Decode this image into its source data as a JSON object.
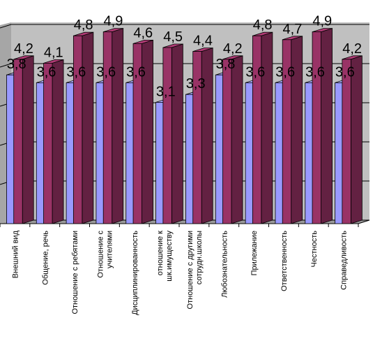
{
  "chart_data": {
    "type": "bar",
    "title": "",
    "xlabel": "",
    "ylabel": "",
    "ylim": [
      0,
      5
    ],
    "grid": true,
    "legend": "none",
    "categories": [
      "Внешний вид",
      "Общение, речь",
      "Отношение с ребятами",
      "Отношение с учителями",
      "Дисциплинированность",
      "отношение к шк.имуществу",
      "Отношение с другими сотрудн.школы",
      "Любознательность",
      "Прилежание",
      "Ответственность",
      "Честность",
      "Справедливость"
    ],
    "series": [
      {
        "values": [
          3.8,
          3.6,
          3.6,
          3.6,
          3.6,
          3.1,
          3.3,
          3.8,
          3.6,
          3.6,
          3.6,
          3.6
        ],
        "labels": [
          "3,8",
          "3,6",
          "3,6",
          "3,6",
          "3,6",
          "3,1",
          "3,3",
          "3,8",
          "3,6",
          "3,6",
          "3,6",
          "3,6"
        ],
        "color": "#9999ff"
      },
      {
        "values": [
          4.2,
          4.1,
          4.8,
          4.9,
          4.6,
          4.5,
          4.4,
          4.2,
          4.8,
          4.7,
          4.9,
          4.2
        ],
        "labels": [
          "4,2",
          "4,1",
          "4,8",
          "4,9",
          "4,6",
          "4,5",
          "4,4",
          "4,2",
          "4,8",
          "4,7",
          "4,9",
          "4,2"
        ],
        "color": "#993366"
      }
    ]
  }
}
